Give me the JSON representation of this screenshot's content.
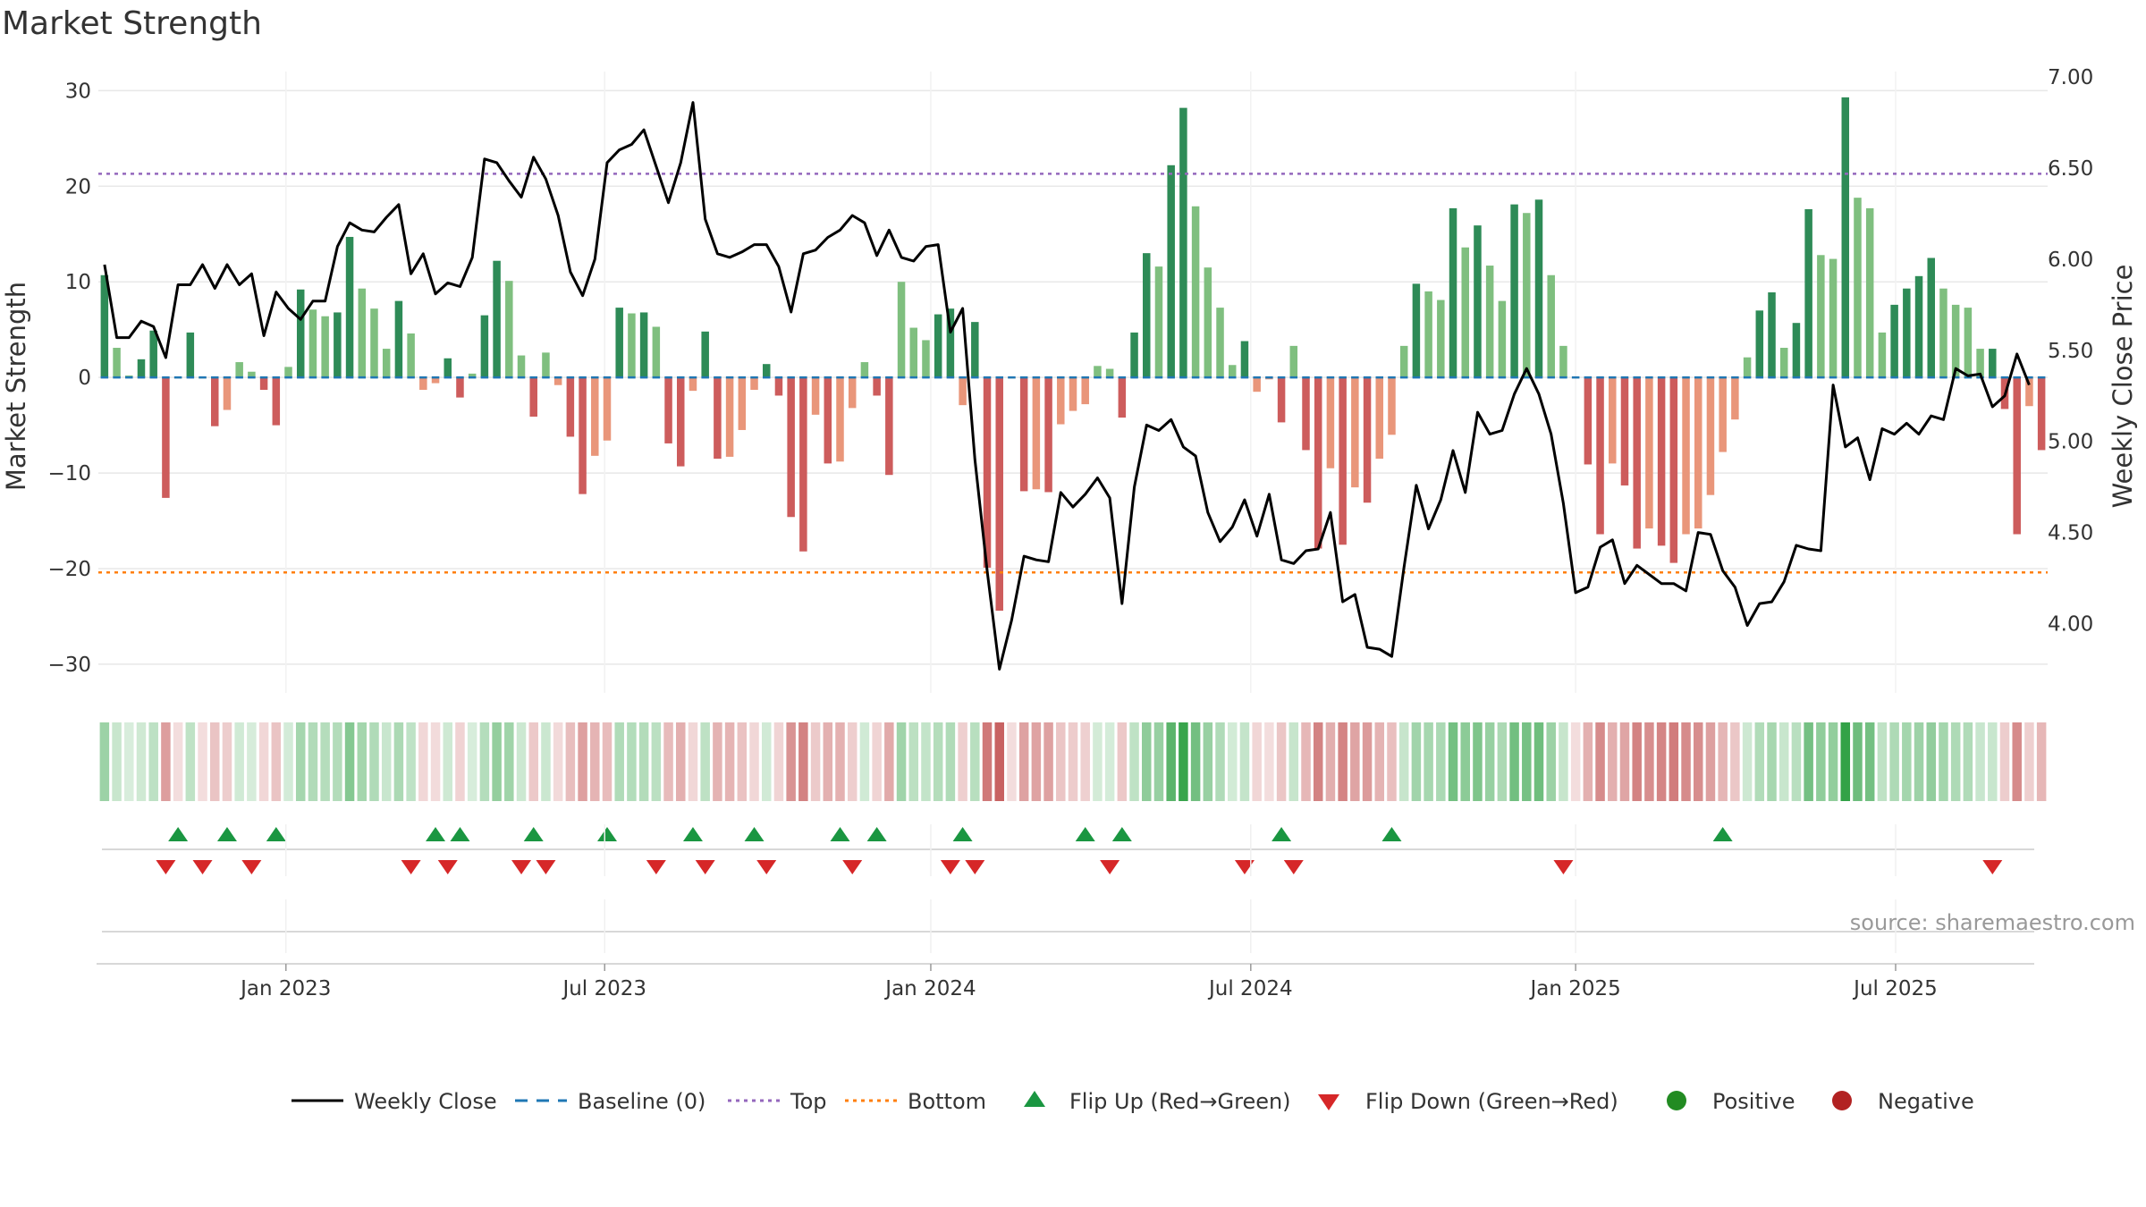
{
  "chart_data": {
    "type": "bar+line",
    "title": "Market Strength",
    "ylabel": "Market Strength",
    "y2label": "Weekly Close Price",
    "ylim": [
      -33,
      32
    ],
    "y2lim": [
      3.62,
      7.03
    ],
    "yticks": [
      30,
      20,
      10,
      0,
      -10,
      -20,
      -30
    ],
    "ytick_labels": [
      "30",
      "20",
      "10",
      "0",
      "−10",
      "−20",
      "−30"
    ],
    "y2ticks": [
      7.0,
      6.5,
      6.0,
      5.5,
      5.0,
      4.5,
      4.0
    ],
    "y2tick_labels": [
      "7.00",
      "6.50",
      "6.00",
      "5.50",
      "5.00",
      "4.50",
      "4.00"
    ],
    "x_index_range": [
      0,
      158
    ],
    "xticks": [
      {
        "label": "Jan 2023",
        "index": 15.3
      },
      {
        "label": "Jul 2023",
        "index": 41.3
      },
      {
        "label": "Jan 2024",
        "index": 67.9
      },
      {
        "label": "Jul 2024",
        "index": 94.0
      },
      {
        "label": "Jan 2025",
        "index": 120.5
      },
      {
        "label": "Jul 2025",
        "index": 146.6
      }
    ],
    "thresholds": {
      "top": 21.3,
      "bottom": -20.4,
      "baseline": 0
    },
    "strength": [
      10.7,
      3.1,
      0.2,
      1.9,
      4.9,
      -12.6,
      -0.1,
      4.7,
      -0.1,
      -5.1,
      -3.4,
      1.6,
      0.6,
      -1.3,
      -5,
      1.1,
      9.2,
      7.1,
      6.4,
      6.8,
      14.7,
      9.3,
      7.2,
      3,
      8,
      4.6,
      -1.3,
      -0.6,
      2,
      -2.1,
      0.4,
      6.5,
      12.2,
      10.1,
      2.3,
      -4.1,
      2.6,
      -0.8,
      -6.2,
      -12.2,
      -8.2,
      -6.6,
      7.3,
      6.7,
      6.8,
      5.3,
      -6.9,
      -9.3,
      -1.4,
      4.8,
      -8.5,
      -8.3,
      -5.5,
      -1.3,
      1.4,
      -1.9,
      -14.6,
      -18.2,
      -3.9,
      -9,
      -8.8,
      -3.2,
      1.6,
      -1.9,
      -10.2,
      10,
      5.2,
      3.9,
      6.6,
      7.2,
      -2.9,
      5.8,
      -19.9,
      -24.4,
      -0.1,
      -11.9,
      -11.7,
      -12,
      -4.9,
      -3.5,
      -2.8,
      1.2,
      0.9,
      -4.2,
      4.7,
      13,
      11.6,
      22.2,
      28.2,
      17.9,
      11.5,
      7.3,
      1.3,
      3.8,
      -1.5,
      -0.2,
      -4.7,
      3.3,
      -7.6,
      -17.9,
      -9.5,
      -17.5,
      -11.5,
      -13.1,
      -8.5,
      -6,
      3.3,
      9.8,
      9,
      8.1,
      17.7,
      13.6,
      15.9,
      11.7,
      8,
      18.1,
      17.2,
      18.6,
      10.7,
      3.3,
      -0.1,
      -9.1,
      -16.4,
      -9,
      -11.3,
      -17.9,
      -15.8,
      -17.6,
      -19.4,
      -16.4,
      -15.8,
      -12.3,
      -7.8,
      -4.4,
      2.1,
      7,
      8.9,
      3.1,
      5.7,
      17.6,
      12.8,
      12.4,
      29.3,
      18.8,
      17.7,
      4.7,
      7.6,
      9.3,
      10.6,
      12.5,
      9.3,
      7.6,
      7.3,
      3,
      3,
      -3.3,
      -16.4,
      -3,
      -7.6
    ],
    "close": [
      5.97,
      5.57,
      5.57,
      5.66,
      5.63,
      5.46,
      5.86,
      5.86,
      5.97,
      5.84,
      5.97,
      5.86,
      5.92,
      5.58,
      5.82,
      5.73,
      5.67,
      5.77,
      5.77,
      6.07,
      6.2,
      6.16,
      6.15,
      6.23,
      6.3,
      5.92,
      6.03,
      5.81,
      5.87,
      5.85,
      6.01,
      6.55,
      6.53,
      6.43,
      6.34,
      6.56,
      6.44,
      6.24,
      5.93,
      5.8,
      6,
      6.53,
      6.6,
      6.63,
      6.71,
      6.51,
      6.31,
      6.53,
      6.86,
      6.22,
      6.03,
      6.01,
      6.04,
      6.08,
      6.08,
      5.96,
      5.71,
      6.03,
      6.05,
      6.12,
      6.16,
      6.24,
      6.2,
      6.02,
      6.16,
      6.01,
      5.99,
      6.07,
      6.08,
      5.6,
      5.73,
      4.9,
      4.29,
      3.75,
      4.02,
      4.37,
      4.35,
      4.34,
      4.72,
      4.64,
      4.71,
      4.8,
      4.69,
      4.11,
      4.75,
      5.09,
      5.06,
      5.12,
      4.97,
      4.92,
      4.61,
      4.45,
      4.53,
      4.68,
      4.48,
      4.71,
      4.35,
      4.33,
      4.4,
      4.41,
      4.61,
      4.12,
      4.16,
      3.87,
      3.86,
      3.82,
      4.31,
      4.76,
      4.52,
      4.68,
      4.95,
      4.72,
      5.16,
      5.04,
      5.06,
      5.26,
      5.4,
      5.26,
      5.04,
      4.66,
      4.17,
      4.2,
      4.42,
      4.46,
      4.22,
      4.32,
      4.27,
      4.22,
      4.22,
      4.18,
      4.5,
      4.49,
      4.29,
      4.2,
      3.99,
      4.11,
      4.12,
      4.23,
      4.43,
      4.41,
      4.4,
      5.31,
      4.97,
      5.02,
      4.79,
      5.07,
      5.04,
      5.1,
      5.04,
      5.14,
      5.12,
      5.4,
      5.36,
      5.37,
      5.19,
      5.25,
      5.48,
      5.31
    ],
    "flip_up_indices": [
      6,
      10,
      14,
      27,
      29,
      35,
      41,
      48,
      53,
      60,
      63,
      70,
      80,
      83,
      96,
      105,
      132
    ],
    "flip_down_indices": [
      5,
      8,
      12,
      25,
      28,
      34,
      36,
      45,
      49,
      54,
      61,
      69,
      71,
      82,
      93,
      97,
      119,
      154
    ],
    "legend": {
      "weekly_close": "Weekly Close",
      "baseline": "Baseline (0)",
      "top": "Top",
      "bottom": "Bottom",
      "flip_up": "Flip Up (Red→Green)",
      "flip_down": "Flip Down (Green→Red)",
      "positive": "Positive",
      "negative": "Negative"
    },
    "source": "source: sharemaestro.com"
  },
  "colors": {
    "pos_strong": "#2e8b57",
    "pos_weak": "#7fbf7f",
    "neg_strong": "#cd5c5c",
    "neg_weak": "#e9967a",
    "close_line": "#000000",
    "baseline": "#1f77b4",
    "top": "#9467bd",
    "bottom": "#ff7f0e",
    "flip_up": "#1a9641",
    "flip_down": "#d62728",
    "positive": "#228b22",
    "negative": "#b22222",
    "grid": "#e8e8e8",
    "axis": "#cccccc"
  }
}
